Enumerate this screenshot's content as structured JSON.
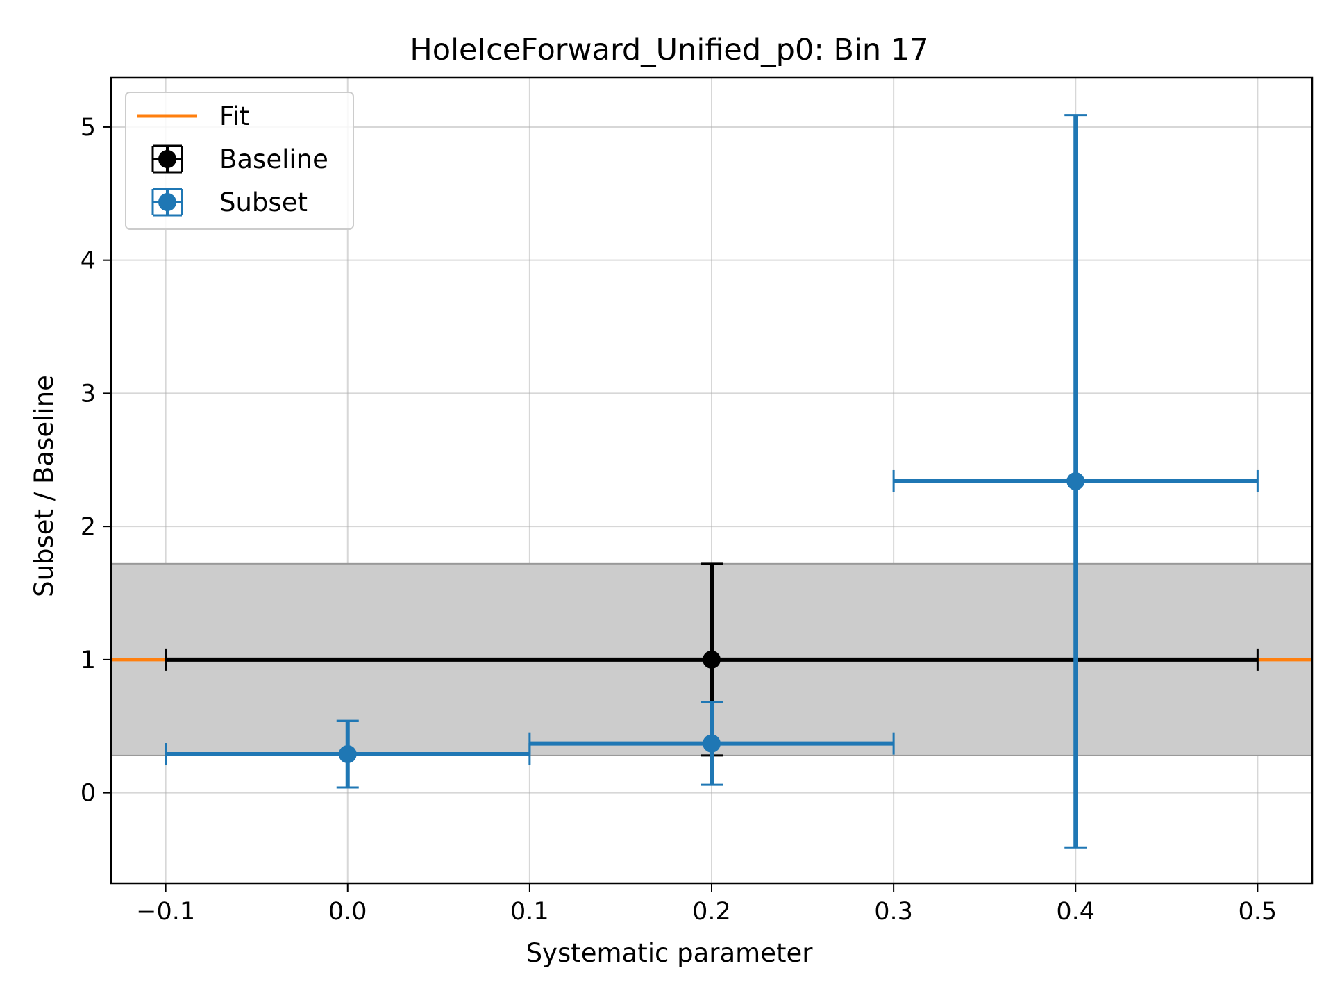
{
  "chart_data": {
    "type": "scatter",
    "title": "HoleIceForward_Unified_p0: Bin 17",
    "xlabel": "Systematic parameter",
    "ylabel": "Subset / Baseline",
    "xlim": [
      -0.13,
      0.53
    ],
    "ylim": [
      -0.68,
      5.37
    ],
    "x_ticks": [
      -0.1,
      0.0,
      0.1,
      0.2,
      0.3,
      0.4,
      0.5
    ],
    "x_tick_labels": [
      "−0.1",
      "0.0",
      "0.1",
      "0.2",
      "0.3",
      "0.4",
      "0.5"
    ],
    "y_ticks": [
      0,
      1,
      2,
      3,
      4,
      5
    ],
    "y_tick_labels": [
      "0",
      "1",
      "2",
      "3",
      "4",
      "5"
    ],
    "grid": true,
    "legend_position": "top-left",
    "colors": {
      "fit": "#ff7f0e",
      "baseline": "#000000",
      "subset": "#1f77b4",
      "band": "#cccccc"
    },
    "fit": {
      "name": "Fit",
      "x": [
        -0.13,
        0.53
      ],
      "y": [
        1.0,
        1.0
      ]
    },
    "band": {
      "y_low": 0.28,
      "y_high": 1.72
    },
    "series": [
      {
        "name": "Baseline",
        "points": [
          {
            "x": 0.2,
            "y": 1.0,
            "xerr": 0.3,
            "yerr_low": 0.72,
            "yerr_high": 0.72
          }
        ]
      },
      {
        "name": "Subset",
        "points": [
          {
            "x": 0.0,
            "y": 0.29,
            "xerr": 0.1,
            "yerr_low": 0.25,
            "yerr_high": 0.25
          },
          {
            "x": 0.2,
            "y": 0.37,
            "xerr": 0.1,
            "yerr_low": 0.31,
            "yerr_high": 0.31
          },
          {
            "x": 0.4,
            "y": 2.34,
            "xerr": 0.1,
            "yerr_low": 2.75,
            "yerr_high": 2.75
          }
        ]
      }
    ]
  }
}
